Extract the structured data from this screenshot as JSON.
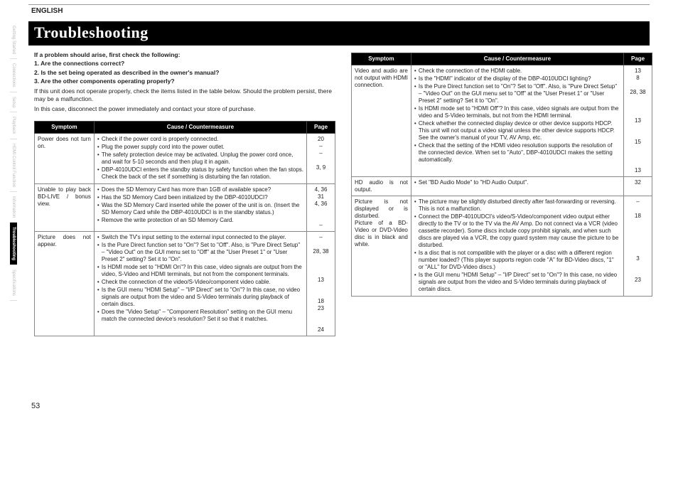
{
  "lang_label": "ENGLISH",
  "page_number": "53",
  "title": "Troubleshooting",
  "side_tabs": [
    {
      "label": "Getting Started",
      "active": false
    },
    {
      "label": "Connections",
      "active": false
    },
    {
      "label": "Setup",
      "active": false
    },
    {
      "label": "Playback",
      "active": false
    },
    {
      "label": "HDMI Control Function",
      "active": false
    },
    {
      "label": "Information",
      "active": false
    },
    {
      "label": "Troubleshooting",
      "active": true
    },
    {
      "label": "Specifications",
      "active": false
    }
  ],
  "intro": {
    "lead": "If a problem should arise, first check the following:",
    "q1": "1. Are the connections correct?",
    "q2": "2. Is the set being operated as described in the owner's manual?",
    "q3": "3. Are the other components operating properly?",
    "para1": "If this unit does not operate properly, check the items listed in the table below. Should the problem persist, there may be a malfunction.",
    "para2": "In this case, disconnect the power immediately and contact your store of purchase."
  },
  "headers": {
    "symptom": "Symptom",
    "cause": "Cause / Countermeasure",
    "page": "Page"
  },
  "left_rows": [
    {
      "symptom": "Power does not turn on.",
      "causes": [
        "Check if the power cord is properly connected.",
        "Plug the power supply cord into the power outlet.",
        "The safety protection device may be activated. Unplug the power cord once, and wait for 5-10 seconds and then plug it in again.",
        "DBP-4010UDCI enters the standby status by safety function when the fan stops. Check the back of the set if something is disturbing the fan rotation."
      ],
      "pages": "20\n–\n–\n\n3, 9"
    },
    {
      "symptom": "Unable to play back BD-LIVE / bonus view.",
      "causes": [
        "Does the SD Memory Card has more than 1GB of available space?",
        "Has the SD Memory Card been initialized by the DBP-4010UDCI?",
        "Was the SD Memory Card inserted while the power of the unit is on. (Insert the SD Memory Card while the DBP-4010UDCI is in the standby status.)",
        "Remove the write protection of an SD Memory Card."
      ],
      "pages": "4, 36\n31\n4, 36\n\n\n–"
    },
    {
      "symptom": "Picture does not appear.",
      "causes": [
        "Switch the TV's input setting to the external input connected to the player.",
        "Is the Pure Direct function set to \"On\"? Set to \"Off\". Also, is \"Pure Direct Setup\" – \"Video Out\" on the GUI menu set to \"Off\" at the \"User Preset 1\" or \"User Preset 2\" setting? Set it to \"On\".",
        "Is HDMI mode set to \"HDMI On\"? In this case, video signals are output from the video, S-Video and HDMI terminals, but not from the component terminals.",
        "Check the connection of the video/S-Video/component video cable.",
        "Is the GUI menu \"HDMI Setup\" – \"I/P Direct\" set to \"On\"? In this case, no video signals are output from the video and S-Video terminals during playback of certain discs.",
        "Does the \"Video Setup\" – \"Component Resolution\" setting on the GUI menu match the connected device's resolution? Set it so that it matches."
      ],
      "pages": "–\n\n28, 38\n\n\n\n13\n\n\n18\n23\n\n\n24"
    }
  ],
  "right_rows": [
    {
      "symptom": "Video and audio are not output with HDMI connection.",
      "causes": [
        "Check the connection of the HDMI cable.",
        "Is the \"HDMI\" indicator of the display of the DBP-4010UDCI lighting?",
        "Is the Pure Direct function set to \"On\"? Set to \"Off\". Also, is \"Pure Direct Setup\" – \"Video Out\" on the GUI menu set to \"Off\" at the \"User Preset 1\" or \"User Preset 2\" setting? Set it to \"On\".",
        "Is HDMI mode set to \"HDMI Off\"? In this case, video signals are output from the video and S-Video terminals, but not from the HDMI terminal.",
        "Check whether the connected display device or other device supports HDCP. This unit will not output a video signal unless the other device supports HDCP. See the owner's manual of your TV, AV Amp, etc.",
        "Check that the setting of the HDMI video resolution supports the resolution of the connected device. When set to \"Auto\", DBP-4010UDCI makes the setting automatically."
      ],
      "pages": "13\n8\n\n28, 38\n\n\n\n13\n\n\n15\n\n\n\n13"
    },
    {
      "symptom": "HD audio is not output.",
      "causes": [
        "Set \"BD Audio Mode\" to \"HD Audio Output\"."
      ],
      "pages": "32"
    },
    {
      "symptom": "Picture is not displayed or is disturbed.\nPicture of a BD-Video or DVD-Video disc is in black and white.",
      "causes": [
        "The picture may be slightly disturbed directly after fast-forwarding or reversing. This is not a malfunction.",
        "Connect the DBP-4010UDCI's video/S-Video/component video output either directly to the TV or to the TV via the AV Amp. Do not connect via a VCR (video cassette recorder). Some discs include copy prohibit signals, and when such discs are played via a VCR, the copy guard system may cause the picture to be disturbed.",
        "Is a disc that is not compatible with the player or a disc with a different region number loaded? (This player supports region code \"A\" for BD-Video discs, \"1\" or \"ALL\" for DVD-Video discs.)",
        "Is the GUI menu \"HDMI Setup\" – \"I/P Direct\" set to \"On\"? In this case, no video signals are output from the video and S-Video terminals during playback of certain discs."
      ],
      "pages": "–\n\n18\n\n\n\n\n\n3\n\n\n23"
    }
  ]
}
